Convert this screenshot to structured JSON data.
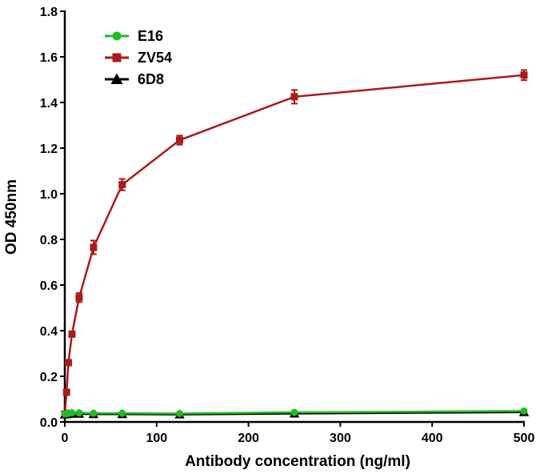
{
  "chart_data": {
    "type": "line",
    "title": "",
    "xlabel": "Antibody concentration (ng/ml)",
    "ylabel": "OD 450nm",
    "xlim": [
      0,
      500
    ],
    "ylim": [
      0,
      1.8
    ],
    "x_ticks": [
      0,
      100,
      200,
      300,
      400,
      500
    ],
    "y_ticks": [
      "0.0",
      "0.2",
      "0.4",
      "0.6",
      "0.8",
      "1.0",
      "1.2",
      "1.4",
      "1.6",
      "1.8"
    ],
    "grid": false,
    "legend_position": "top-left",
    "series": [
      {
        "name": "E16",
        "color": "#22bb22",
        "marker": "circle",
        "x": [
          0,
          1.95,
          3.9,
          7.8,
          15.6,
          31.25,
          62.5,
          125,
          250,
          500
        ],
        "y": [
          0.035,
          0.037,
          0.038,
          0.04,
          0.04,
          0.038,
          0.038,
          0.037,
          0.042,
          0.048
        ],
        "err": [
          0.004,
          0.004,
          0.004,
          0.005,
          0.005,
          0.004,
          0.004,
          0.004,
          0.005,
          0.006
        ]
      },
      {
        "name": "ZV54",
        "color": "#aa1a1a",
        "marker": "square",
        "x": [
          0,
          1.95,
          3.9,
          7.8,
          15.6,
          31.25,
          62.5,
          125,
          250,
          500
        ],
        "y": [
          0.035,
          0.13,
          0.26,
          0.385,
          0.545,
          0.765,
          1.04,
          1.235,
          1.425,
          1.52
        ],
        "err": [
          0.004,
          0.01,
          0.012,
          0.012,
          0.02,
          0.03,
          0.025,
          0.02,
          0.03,
          0.022
        ]
      },
      {
        "name": "6D8",
        "color": "#000000",
        "marker": "triangle",
        "x": [
          0,
          1.95,
          3.9,
          7.8,
          15.6,
          31.25,
          62.5,
          125,
          250,
          500
        ],
        "y": [
          0.033,
          0.034,
          0.035,
          0.037,
          0.036,
          0.034,
          0.034,
          0.033,
          0.037,
          0.043
        ],
        "err": [
          0.004,
          0.004,
          0.004,
          0.004,
          0.004,
          0.004,
          0.004,
          0.004,
          0.005,
          0.005
        ]
      }
    ]
  }
}
